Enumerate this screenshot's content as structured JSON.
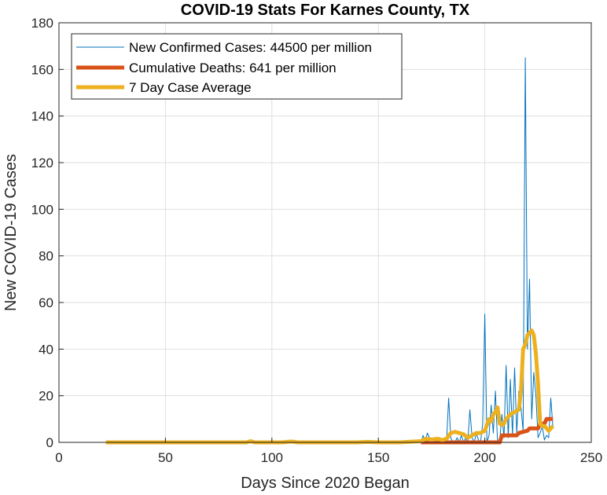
{
  "chart_data": {
    "type": "line",
    "title": "COVID-19 Stats For Karnes County, TX",
    "xlabel": "Days Since 2020 Began",
    "ylabel": "New COVID-19 Cases",
    "xlim": [
      0,
      250
    ],
    "ylim": [
      0,
      180
    ],
    "xticks": [
      0,
      50,
      100,
      150,
      200,
      250
    ],
    "yticks": [
      0,
      20,
      40,
      60,
      80,
      100,
      120,
      140,
      160,
      180
    ],
    "grid": true,
    "legend_position": "top-left",
    "series": [
      {
        "name": "New Confirmed Cases: 44500 per million",
        "color": "#0072BD",
        "x": [
          22,
          60,
          100,
          140,
          170,
          171,
          172,
          173,
          174,
          175,
          176,
          177,
          178,
          179,
          180,
          181,
          182,
          183,
          184,
          185,
          186,
          187,
          188,
          189,
          190,
          191,
          192,
          193,
          194,
          195,
          196,
          197,
          198,
          199,
          200,
          201,
          202,
          203,
          204,
          205,
          206,
          207,
          208,
          209,
          210,
          211,
          212,
          213,
          214,
          215,
          216,
          217,
          218,
          219,
          220,
          221,
          222,
          223,
          224,
          225,
          226,
          227,
          228,
          229,
          230,
          231,
          232
        ],
        "y": [
          0,
          0,
          0,
          0,
          0,
          3,
          0,
          4,
          2,
          0,
          1,
          0,
          0,
          2,
          0,
          0,
          0,
          19,
          2,
          0,
          0,
          2,
          0,
          3,
          0,
          2,
          0,
          14,
          2,
          0,
          4,
          1,
          0,
          8,
          55,
          0,
          3,
          16,
          4,
          22,
          0,
          1,
          12,
          2,
          33,
          2,
          27,
          3,
          32,
          4,
          22,
          15,
          5,
          165,
          40,
          70,
          10,
          30,
          20,
          2,
          4,
          7,
          1,
          3,
          2,
          19,
          6
        ]
      },
      {
        "name": "Cumulative Deaths: 641 per million",
        "color": "#D95319",
        "x": [
          170,
          180,
          190,
          200,
          207,
          208,
          209,
          215,
          216,
          220,
          221,
          225,
          226,
          228,
          229,
          232
        ],
        "y": [
          0,
          0,
          0,
          0,
          0,
          3,
          3,
          3,
          4,
          5,
          6,
          6,
          8,
          8,
          10,
          10
        ]
      },
      {
        "name": "7 Day Case Average",
        "color": "#EDB120",
        "x": [
          22,
          40,
          60,
          80,
          88,
          90,
          92,
          100,
          105,
          108,
          110,
          112,
          120,
          130,
          140,
          145,
          150,
          160,
          170,
          172,
          175,
          178,
          180,
          182,
          184,
          186,
          188,
          190,
          192,
          194,
          196,
          198,
          200,
          202,
          203,
          204,
          205,
          206,
          207,
          208,
          209,
          210,
          212,
          214,
          216,
          217,
          218,
          219,
          220,
          221,
          222,
          223,
          224,
          225,
          226,
          227,
          228,
          229,
          230,
          231,
          232
        ],
        "y": [
          0,
          0,
          0,
          0,
          0,
          0.5,
          0,
          0,
          0,
          0.3,
          0.3,
          0,
          0,
          0,
          0,
          0.2,
          0,
          0,
          0.5,
          1.5,
          1.2,
          1.5,
          1,
          1.5,
          4,
          4.5,
          4,
          3.5,
          2,
          3,
          4,
          4,
          5,
          10,
          9,
          12,
          13,
          15,
          8,
          7.5,
          8,
          10,
          12,
          13,
          14,
          22,
          40,
          42,
          46,
          47,
          48,
          46,
          38,
          25,
          8,
          7,
          7,
          6,
          5,
          6,
          7
        ]
      }
    ]
  }
}
